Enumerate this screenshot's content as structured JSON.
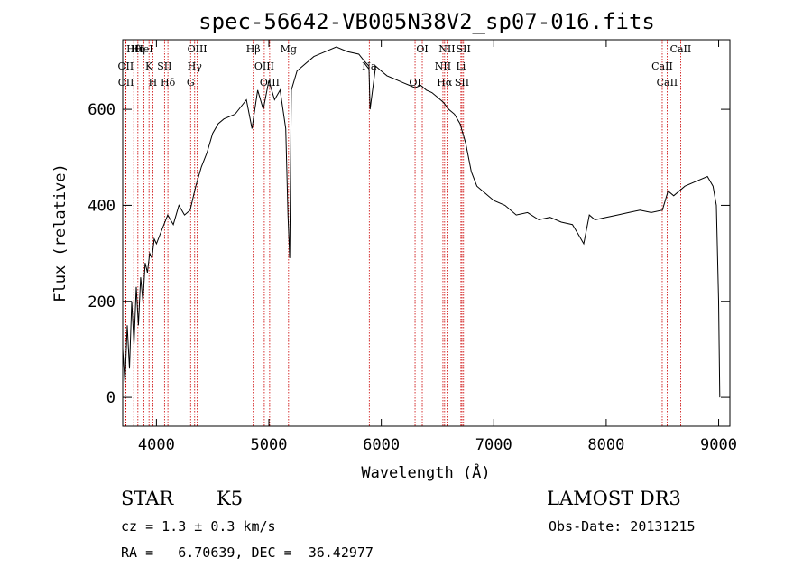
{
  "chart_data": {
    "type": "line",
    "title": "spec-56642-VB005N38V2_sp07-016.fits",
    "xlabel": "Wavelength (Å)",
    "ylabel": "Flux (relative)",
    "xlim": [
      3700,
      9100
    ],
    "ylim": [
      -60,
      745
    ],
    "xticks": [
      4000,
      5000,
      6000,
      7000,
      8000,
      9000
    ],
    "xtick_labels": [
      "4000",
      "5000",
      "6000",
      "7000",
      "8000",
      "9000"
    ],
    "yticks": [
      0,
      200,
      400,
      600
    ],
    "ytick_labels": [
      "0",
      "200",
      "400",
      "600"
    ],
    "grid": false,
    "line_color": "#000000",
    "marker_color": "#cc0000",
    "series": [
      {
        "name": "flux",
        "x": [
          3700,
          3720,
          3740,
          3760,
          3780,
          3800,
          3820,
          3840,
          3860,
          3880,
          3900,
          3920,
          3940,
          3960,
          3980,
          4000,
          4050,
          4100,
          4150,
          4200,
          4250,
          4300,
          4330,
          4350,
          4400,
          4450,
          4500,
          4550,
          4600,
          4700,
          4800,
          4850,
          4900,
          4950,
          5000,
          5050,
          5100,
          5150,
          5170,
          5185,
          5200,
          5250,
          5300,
          5400,
          5500,
          5600,
          5700,
          5800,
          5850,
          5890,
          5900,
          5950,
          6000,
          6050,
          6100,
          6150,
          6200,
          6250,
          6300,
          6350,
          6400,
          6450,
          6500,
          6550,
          6600,
          6650,
          6700,
          6750,
          6800,
          6850,
          6900,
          7000,
          7100,
          7200,
          7300,
          7400,
          7500,
          7600,
          7700,
          7750,
          7800,
          7850,
          7900,
          8000,
          8100,
          8200,
          8300,
          8400,
          8500,
          8550,
          8600,
          8700,
          8800,
          8900,
          8950,
          8980,
          9000,
          9010
        ],
        "y": [
          100,
          30,
          150,
          60,
          200,
          110,
          230,
          150,
          250,
          200,
          280,
          260,
          300,
          290,
          330,
          320,
          350,
          380,
          360,
          400,
          380,
          390,
          420,
          440,
          480,
          510,
          550,
          570,
          580,
          590,
          620,
          560,
          640,
          600,
          660,
          620,
          640,
          560,
          380,
          290,
          640,
          680,
          690,
          710,
          720,
          730,
          720,
          715,
          700,
          690,
          600,
          690,
          680,
          670,
          665,
          660,
          655,
          650,
          645,
          650,
          640,
          635,
          625,
          615,
          600,
          590,
          570,
          530,
          470,
          440,
          430,
          410,
          400,
          380,
          385,
          370,
          375,
          365,
          360,
          340,
          320,
          380,
          370,
          375,
          380,
          385,
          390,
          385,
          390,
          430,
          420,
          440,
          450,
          460,
          440,
          400,
          200,
          0
        ]
      }
    ],
    "lines": [
      {
        "label": "Hθ",
        "wavelength": 3798
      },
      {
        "label": "OII",
        "wavelength": 3727
      },
      {
        "label": "OII",
        "wavelength": 3729
      },
      {
        "label": "Hη",
        "wavelength": 3835
      },
      {
        "label": "K",
        "wavelength": 3934
      },
      {
        "label": "H",
        "wavelength": 3968
      },
      {
        "label": "HeI",
        "wavelength": 3889
      },
      {
        "label": "SII",
        "wavelength": 4072
      },
      {
        "label": "Hδ",
        "wavelength": 4102
      },
      {
        "label": "OIII",
        "wavelength": 4363
      },
      {
        "label": "Hγ",
        "wavelength": 4340
      },
      {
        "label": "G",
        "wavelength": 4304
      },
      {
        "label": "Hβ",
        "wavelength": 4861
      },
      {
        "label": "OIII",
        "wavelength": 4959
      },
      {
        "label": "OIII",
        "wavelength": 5007
      },
      {
        "label": "Mg",
        "wavelength": 5175
      },
      {
        "label": "Na",
        "wavelength": 5893
      },
      {
        "label": "OI",
        "wavelength": 6300
      },
      {
        "label": "OI",
        "wavelength": 6364
      },
      {
        "label": "NII",
        "wavelength": 6548
      },
      {
        "label": "Hα",
        "wavelength": 6563
      },
      {
        "label": "NII",
        "wavelength": 6584
      },
      {
        "label": "Li",
        "wavelength": 6708
      },
      {
        "label": "SII",
        "wavelength": 6717
      },
      {
        "label": "SII",
        "wavelength": 6731
      },
      {
        "label": "CaII",
        "wavelength": 8498
      },
      {
        "label": "CaII",
        "wavelength": 8542
      },
      {
        "label": "CaII",
        "wavelength": 8662
      }
    ]
  },
  "info": {
    "class": "STAR",
    "subclass": "K5",
    "survey": "LAMOST DR3",
    "cz": "cz = 1.3 ± 0.3 km/s",
    "obs_date": "Obs-Date: 20131215",
    "coords": "RA =   6.70639, DEC =  36.42977"
  }
}
